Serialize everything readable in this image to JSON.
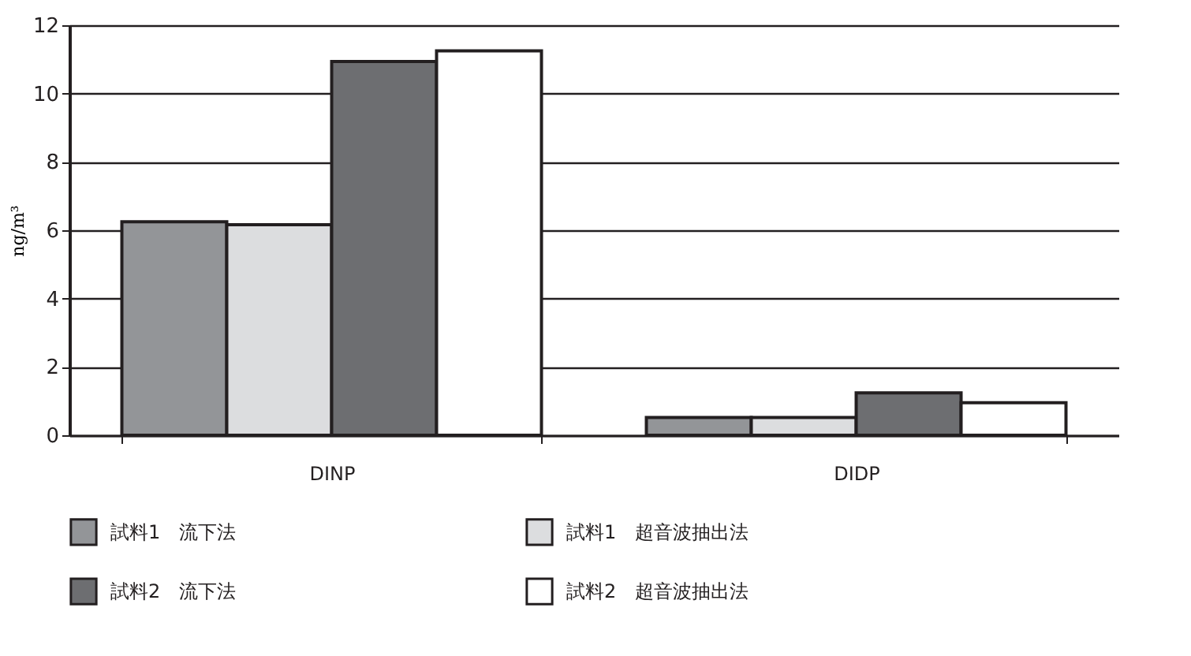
{
  "chart_data": {
    "type": "bar",
    "ylabel": "ng/m³",
    "categories": [
      "DINP",
      "DIDP"
    ],
    "series": [
      {
        "name": "試料1　流下法",
        "color": "#939598",
        "values": [
          6.25,
          0.52
        ]
      },
      {
        "name": "試料1　超音波抽出法",
        "color": "#dcdddf",
        "values": [
          6.16,
          0.52
        ]
      },
      {
        "name": "試料2　流下法",
        "color": "#6d6e71",
        "values": [
          10.94,
          1.24
        ]
      },
      {
        "name": "試料2　超音波抽出法",
        "color": "#ffffff",
        "values": [
          11.25,
          0.95
        ]
      }
    ],
    "ylim": [
      0,
      12
    ],
    "yticks": [
      0,
      2,
      4,
      6,
      8,
      10,
      12
    ],
    "grid": "y",
    "legend": "bottom"
  }
}
